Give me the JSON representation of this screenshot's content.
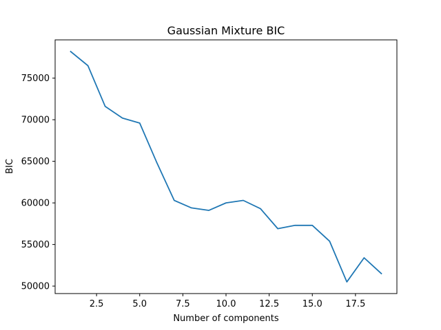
{
  "chart_data": {
    "type": "line",
    "title": "Gaussian Mixture BIC",
    "xlabel": "Number of components",
    "ylabel": "BIC",
    "xlim": [
      0.1,
      19.9
    ],
    "ylim": [
      49100,
      79600
    ],
    "xticks": [
      2.5,
      5.0,
      7.5,
      10.0,
      12.5,
      15.0,
      17.5
    ],
    "xtick_labels": [
      "2.5",
      "5.0",
      "7.5",
      "10.0",
      "12.5",
      "15.0",
      "17.5"
    ],
    "yticks": [
      50000,
      55000,
      60000,
      65000,
      70000,
      75000
    ],
    "ytick_labels": [
      "50000",
      "55000",
      "60000",
      "65000",
      "70000",
      "75000"
    ],
    "grid": false,
    "line_color": "#1f77b4",
    "series": [
      {
        "x": [
          1,
          2,
          3,
          4,
          5,
          6,
          7,
          8,
          9,
          10,
          11,
          12,
          13,
          14,
          15,
          16,
          17,
          18,
          19
        ],
        "values": [
          78200,
          76500,
          71600,
          70200,
          69600,
          64800,
          60300,
          59400,
          59100,
          60000,
          60300,
          59300,
          56900,
          57300,
          57300,
          55400,
          50500,
          53400,
          51500
        ]
      }
    ]
  }
}
